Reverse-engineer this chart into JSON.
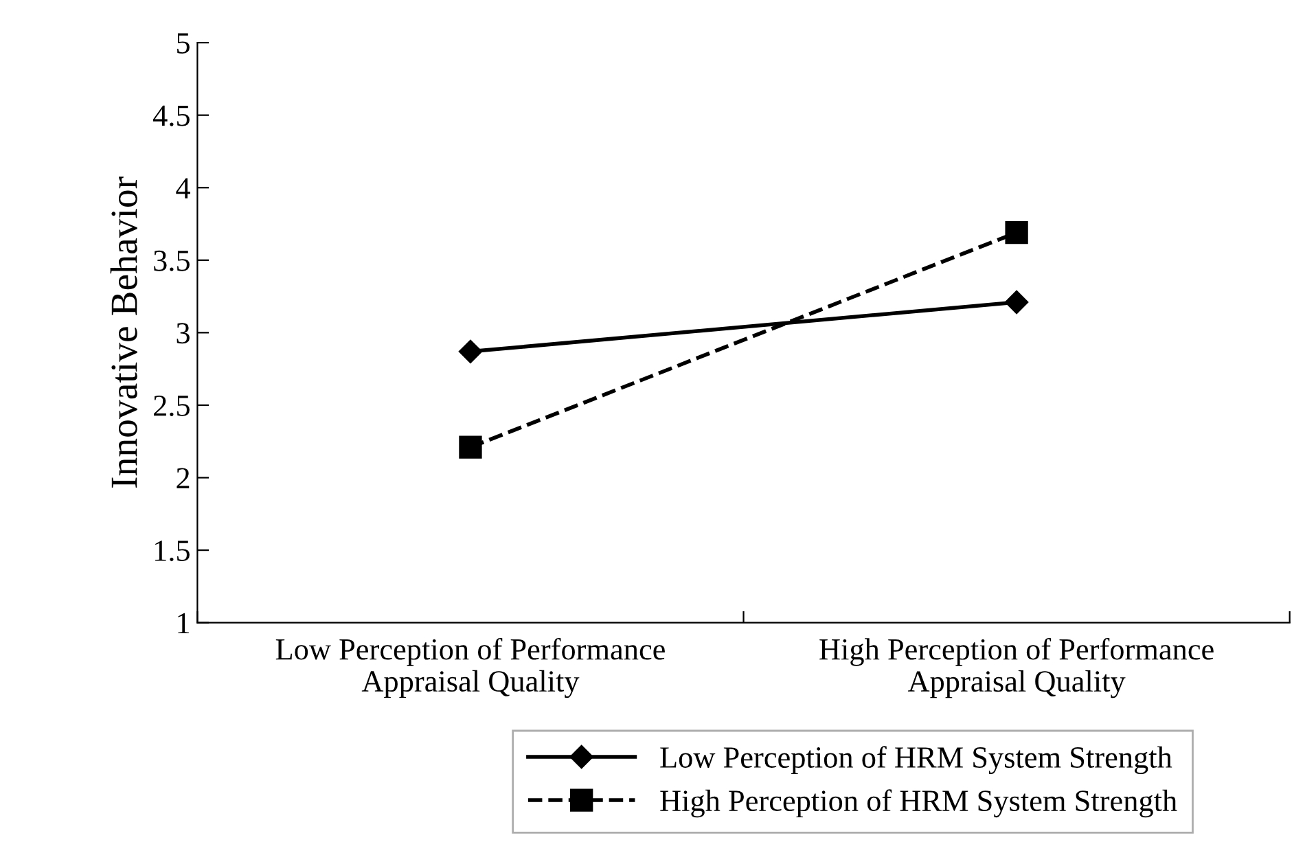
{
  "chart_data": {
    "type": "line",
    "ylabel": "Innovative Behavior",
    "categories": [
      "Low Perception of Performance\nAppraisal Quality",
      "High Perception of Performance\nAppraisal Quality"
    ],
    "series": [
      {
        "name": "Low Perception of HRM System Strength",
        "color": "#000000",
        "values": [
          2.87,
          3.21
        ],
        "marker": "diamond",
        "line_style": "solid"
      },
      {
        "name": "High Perception of HRM System Strength",
        "color": "#000000",
        "values": [
          2.21,
          3.69
        ],
        "marker": "square",
        "line_style": "dashed"
      }
    ],
    "ylim": [
      1,
      5
    ],
    "yticks": [
      1,
      1.5,
      2,
      2.5,
      3,
      3.5,
      4,
      4.5,
      5
    ],
    "grid": false,
    "legend": "bottom"
  }
}
